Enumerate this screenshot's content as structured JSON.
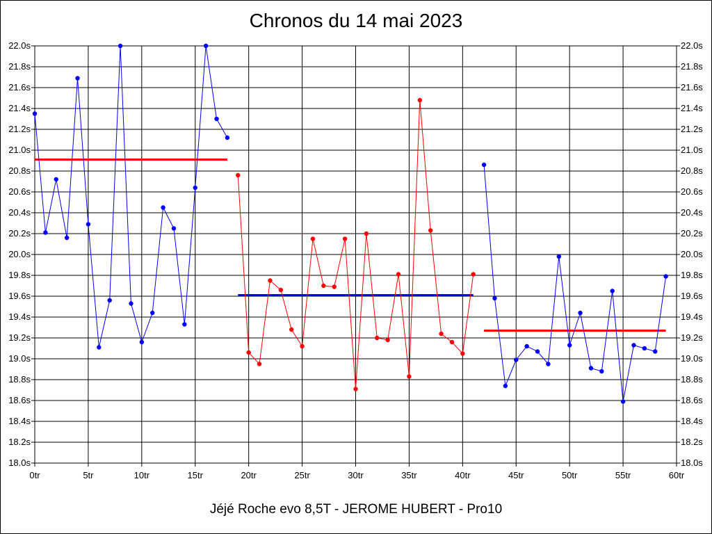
{
  "chart_data": {
    "type": "line",
    "title": "Chronos du 14 mai 2023",
    "subtitle": "Jéjé Roche evo 8,5T - JEROME HUBERT - Pro10",
    "xlabel": "",
    "ylabel": "",
    "xlim": [
      0,
      60
    ],
    "ylim": [
      18.0,
      22.0
    ],
    "grid": true,
    "x_ticks": [
      "0tr",
      "5tr",
      "10tr",
      "15tr",
      "20tr",
      "25tr",
      "30tr",
      "35tr",
      "40tr",
      "45tr",
      "50tr",
      "55tr",
      "60tr"
    ],
    "y_ticks": [
      "18.0s",
      "18.2s",
      "18.4s",
      "18.6s",
      "18.8s",
      "19.0s",
      "19.2s",
      "19.4s",
      "19.6s",
      "19.8s",
      "20.0s",
      "20.2s",
      "20.4s",
      "20.6s",
      "20.8s",
      "21.0s",
      "21.2s",
      "21.4s",
      "21.6s",
      "21.8s",
      "22.0s"
    ],
    "series": [
      {
        "color": "#0000ff",
        "x": [
          0,
          1,
          2,
          3,
          4,
          5,
          6,
          7,
          8,
          9,
          10,
          11,
          12,
          13,
          14,
          15,
          16,
          17,
          18
        ],
        "values": [
          21.35,
          20.21,
          20.72,
          20.16,
          21.69,
          20.29,
          19.11,
          19.56,
          22.0,
          19.53,
          19.16,
          19.44,
          20.45,
          20.25,
          19.33,
          20.64,
          22.0,
          21.3,
          21.12
        ]
      },
      {
        "color": "#ff0000",
        "x": [
          19,
          20,
          21,
          22,
          23,
          24,
          25,
          26,
          27,
          28,
          29,
          30,
          31,
          32,
          33,
          34,
          35,
          36,
          37,
          38,
          39,
          40,
          41
        ],
        "values": [
          20.76,
          19.06,
          18.95,
          19.75,
          19.66,
          19.28,
          19.12,
          20.15,
          19.7,
          19.69,
          20.15,
          18.71,
          20.2,
          19.2,
          19.18,
          19.81,
          18.83,
          21.48,
          20.23,
          19.24,
          19.16,
          19.05,
          19.81
        ]
      },
      {
        "color": "#0000ff",
        "x": [
          42,
          43,
          44,
          45,
          46,
          47,
          48,
          49,
          50,
          51,
          52,
          53,
          54,
          55,
          56,
          57,
          58,
          59
        ],
        "values": [
          20.86,
          19.58,
          18.74,
          18.99,
          19.12,
          19.07,
          18.95,
          19.98,
          19.13,
          19.44,
          18.91,
          18.88,
          19.65,
          18.59,
          19.13,
          19.1,
          19.07,
          19.79
        ]
      }
    ],
    "average_lines": [
      {
        "color": "#ff0000",
        "x": [
          0,
          18
        ],
        "value": 20.91
      },
      {
        "color": "#0000ff",
        "x": [
          19,
          41
        ],
        "value": 19.61
      },
      {
        "color": "#ff0000",
        "x": [
          42,
          59
        ],
        "value": 19.27
      }
    ]
  }
}
